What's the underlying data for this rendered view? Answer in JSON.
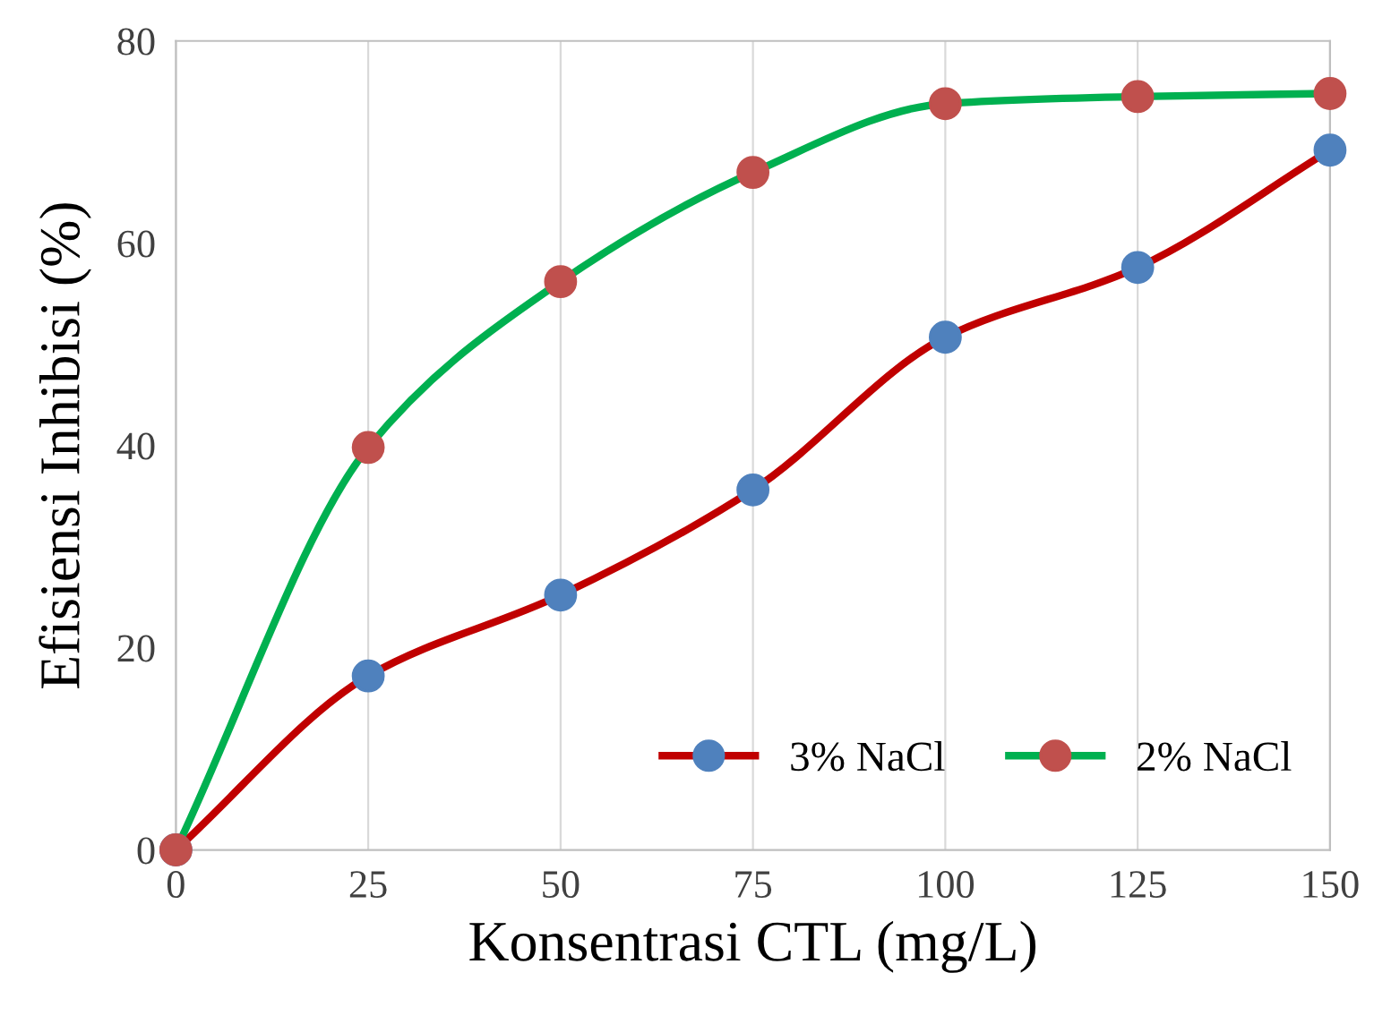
{
  "chart_data": {
    "type": "line",
    "xlabel": "Konsentrasi CTL (mg/L)",
    "ylabel": "Efisiensi Inhibisi (%)",
    "x": [
      0,
      25,
      50,
      75,
      100,
      125,
      150
    ],
    "series": [
      {
        "name": "3% NaCl",
        "color": "#c00000",
        "colors": [
          "#4f81bd",
          "#4f81bd",
          "#4f81bd",
          "#4f81bd",
          "#4f81bd",
          "#4f81bd",
          "#4f81bd"
        ],
        "values": [
          0,
          17.2,
          25.2,
          35.6,
          50.7,
          57.6,
          69.2
        ]
      },
      {
        "name": "2% NaCl",
        "color": "#00b050",
        "colors": [
          "#c0504d",
          "#c0504d",
          "#c0504d",
          "#c0504d",
          "#c0504d",
          "#c0504d",
          "#c0504d"
        ],
        "values": [
          0,
          39.8,
          56.2,
          67.0,
          73.8,
          74.5,
          74.8
        ]
      }
    ],
    "xlim": [
      0,
      150
    ],
    "xticks": [
      0,
      25,
      50,
      75,
      100,
      125,
      150
    ],
    "ylim": [
      0,
      80
    ],
    "yticks": [
      0,
      20,
      40,
      60,
      80
    ],
    "grid": "x",
    "legend": "bottom right",
    "marker": "circle",
    "line_style": "solid"
  }
}
